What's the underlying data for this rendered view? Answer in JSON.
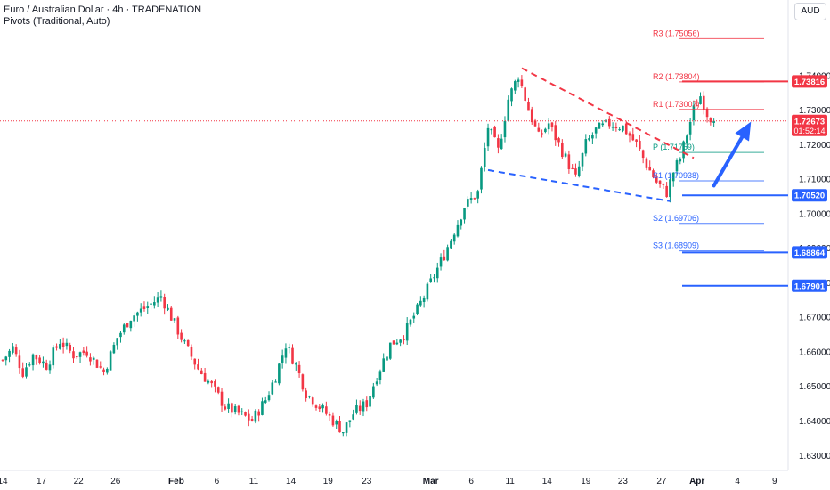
{
  "header": {
    "title": "Euro / Australian Dollar · 4h · TRADENATION",
    "subtitle": "Pivots (Traditional, Auto)",
    "currency": "AUD"
  },
  "colors": {
    "bull": "#089981",
    "bear": "#f23645",
    "blue": "#2962ff",
    "pivot_r": "#f23645",
    "pivot_p": "#089981",
    "pivot_s": "#2962ff"
  },
  "chart_data": {
    "type": "candlestick",
    "symbol": "EUR/AUD",
    "timeframe": "4h",
    "ylim": [
      1.625,
      1.745
    ],
    "y_ticks": [
      "1.74000",
      "1.73000",
      "1.72000",
      "1.71000",
      "1.70000",
      "1.69000",
      "1.68000",
      "1.67000",
      "1.66000",
      "1.65000",
      "1.64000",
      "1.63000"
    ],
    "y_tick_values": [
      1.74,
      1.73,
      1.72,
      1.71,
      1.7,
      1.69,
      1.68,
      1.67,
      1.66,
      1.65,
      1.64,
      1.63
    ],
    "x_ticks": [
      "14",
      "17",
      "22",
      "26",
      "Feb",
      "6",
      "11",
      "14",
      "19",
      "23",
      "Mar",
      "6",
      "11",
      "14",
      "19",
      "23",
      "27",
      "Apr",
      "4",
      "9"
    ],
    "x_tick_index": [
      0,
      11.5,
      22.5,
      33.5,
      51.5,
      63.5,
      74.5,
      85.5,
      96.5,
      108,
      127,
      139,
      150.5,
      161.5,
      173,
      184,
      195.5,
      206,
      218,
      229
    ],
    "price_path": [
      [
        0,
        1.6575
      ],
      [
        3,
        1.661
      ],
      [
        6,
        1.654
      ],
      [
        9,
        1.659
      ],
      [
        13,
        1.656
      ],
      [
        17,
        1.663
      ],
      [
        21,
        1.659
      ],
      [
        25,
        1.66
      ],
      [
        30,
        1.654
      ],
      [
        34,
        1.664
      ],
      [
        38,
        1.67
      ],
      [
        43,
        1.673
      ],
      [
        47,
        1.676
      ],
      [
        50,
        1.67
      ],
      [
        54,
        1.662
      ],
      [
        58,
        1.655
      ],
      [
        62,
        1.65
      ],
      [
        66,
        1.644
      ],
      [
        70,
        1.642
      ],
      [
        74,
        1.64
      ],
      [
        78,
        1.646
      ],
      [
        81,
        1.653
      ],
      [
        84,
        1.662
      ],
      [
        87,
        1.656
      ],
      [
        90,
        1.648
      ],
      [
        94,
        1.644
      ],
      [
        98,
        1.64
      ],
      [
        101,
        1.637
      ],
      [
        104,
        1.642
      ],
      [
        108,
        1.645
      ],
      [
        111,
        1.653
      ],
      [
        115,
        1.662
      ],
      [
        119,
        1.665
      ],
      [
        123,
        1.672
      ],
      [
        127,
        1.68
      ],
      [
        131,
        1.688
      ],
      [
        134,
        1.695
      ],
      [
        137,
        1.702
      ],
      [
        141,
        1.706
      ],
      [
        144,
        1.725
      ],
      [
        147,
        1.718
      ],
      [
        150,
        1.733
      ],
      [
        153,
        1.74
      ],
      [
        156,
        1.73
      ],
      [
        159,
        1.722
      ],
      [
        162,
        1.726
      ],
      [
        166,
        1.718
      ],
      [
        170,
        1.71
      ],
      [
        173,
        1.72
      ],
      [
        176,
        1.724
      ],
      [
        180,
        1.726
      ],
      [
        184,
        1.725
      ],
      [
        188,
        1.72
      ],
      [
        191,
        1.714
      ],
      [
        194,
        1.709
      ],
      [
        197,
        1.706
      ],
      [
        199,
        1.712
      ],
      [
        201,
        1.716
      ],
      [
        203,
        1.723
      ],
      [
        205,
        1.73
      ],
      [
        207,
        1.734
      ],
      [
        209,
        1.729
      ],
      [
        211,
        1.7267
      ]
    ],
    "current_price": {
      "label": "1.72673",
      "countdown": "01:52:14",
      "value": 1.72673
    },
    "pivots": [
      {
        "name": "R3",
        "label": "R3 (1.75056)",
        "value": 1.75056,
        "kind": "r"
      },
      {
        "name": "R2",
        "label": "R2 (1.73804)",
        "value": 1.73804,
        "kind": "r"
      },
      {
        "name": "R1",
        "label": "R1 (1.73007)",
        "value": 1.73007,
        "kind": "r"
      },
      {
        "name": "P",
        "label": "P (1.71759)",
        "value": 1.71759,
        "kind": "p"
      },
      {
        "name": "S1",
        "label": "S1 (1.70938)",
        "value": 1.70938,
        "kind": "s"
      },
      {
        "name": "S2",
        "label": "S2 (1.69706)",
        "value": 1.69706,
        "kind": "s"
      },
      {
        "name": "S3",
        "label": "S3 (1.68909)",
        "value": 1.68909,
        "kind": "s"
      }
    ],
    "horizontal_levels": [
      {
        "label": "1.73816",
        "value": 1.73816,
        "color": "#f23645"
      },
      {
        "label": "1.70520",
        "value": 1.7052,
        "color": "#2962ff"
      },
      {
        "label": "1.68864",
        "value": 1.68864,
        "color": "#2962ff"
      },
      {
        "label": "1.67901",
        "value": 1.67901,
        "color": "#2962ff"
      }
    ],
    "trendlines": [
      {
        "name": "upper-wedge",
        "from": [
          154,
          1.742
        ],
        "to": [
          205,
          1.716
        ],
        "color": "#f23645",
        "dashed": true
      },
      {
        "name": "lower-wedge",
        "from": [
          144,
          1.7125
        ],
        "to": [
          198,
          1.7035
        ],
        "color": "#2962ff",
        "dashed": true
      }
    ],
    "arrow": {
      "from": [
        211,
        1.708
      ],
      "to": [
        222,
        1.7265
      ],
      "color": "#2962ff"
    }
  }
}
